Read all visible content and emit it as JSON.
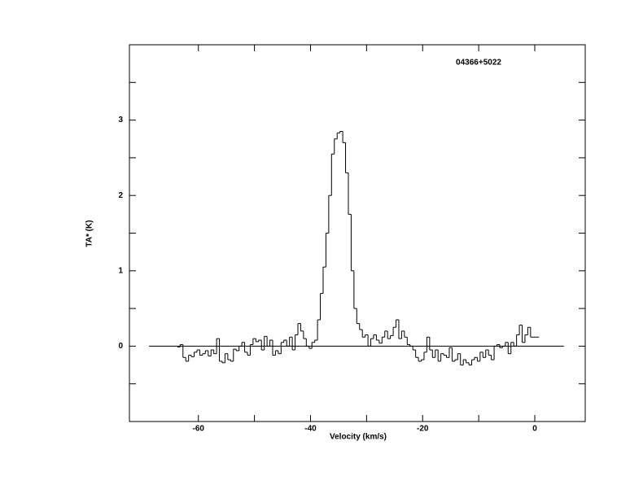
{
  "chart_data": {
    "type": "step",
    "title": "04366+5022",
    "xlabel": "Velocity (km/s)",
    "ylabel": "TA* (K)",
    "xlim": [
      -72.3,
      9
    ],
    "ylim": [
      -1,
      4
    ],
    "xticks": [
      -60,
      -40,
      -20,
      0
    ],
    "xminor_ticks": [
      -50,
      -30,
      -10
    ],
    "yticks": [
      0,
      1,
      2,
      3
    ],
    "yminor_ticks": [
      -0.5,
      0.5,
      1.5,
      2.5,
      3.5
    ],
    "baseline": {
      "value": 0,
      "xrange": [
        -68.8,
        5.2
      ]
    },
    "color": "#000000",
    "x": [
      -63.5,
      -63,
      -62.5,
      -62,
      -61.5,
      -61,
      -60.5,
      -60,
      -59.5,
      -59,
      -58.5,
      -58,
      -57.5,
      -57,
      -56.5,
      -56,
      -55.5,
      -55,
      -54.5,
      -54,
      -53.5,
      -53,
      -52.5,
      -52,
      -51.5,
      -51,
      -50.5,
      -50,
      -49.5,
      -49,
      -48.5,
      -48,
      -47.5,
      -47,
      -46.5,
      -46,
      -45.5,
      -45,
      -44.5,
      -44,
      -43.5,
      -43,
      -42.5,
      -42,
      -41.5,
      -41,
      -40.5,
      -40,
      -39.5,
      -39,
      -38.5,
      -38,
      -37.5,
      -37,
      -36.5,
      -36,
      -35.5,
      -35,
      -34.5,
      -34,
      -33.5,
      -33,
      -32.5,
      -32,
      -31.5,
      -31,
      -30.5,
      -30,
      -29.5,
      -29,
      -28.5,
      -28,
      -27.5,
      -27,
      -26.5,
      -26,
      -25.5,
      -25,
      -24.5,
      -24,
      -23.5,
      -23,
      -22.5,
      -22,
      -21.5,
      -21,
      -20.5,
      -20,
      -19.5,
      -19,
      -18.5,
      -18,
      -17.5,
      -17,
      -16.5,
      -16,
      -15.5,
      -15,
      -14.5,
      -14,
      -13.5,
      -13,
      -12.5,
      -12,
      -11.5,
      -11,
      -10.5,
      -10,
      -9.5,
      -9,
      -8.5,
      -8,
      -7.5,
      -7,
      -6.5,
      -6,
      -5.5,
      -5,
      -4.5,
      -4,
      -3.5,
      -3,
      -2.5,
      -2,
      -1.5,
      -1,
      -0.5,
      0,
      0.5
    ],
    "values": [
      -0.01,
      0.02,
      -0.15,
      -0.2,
      -0.12,
      -0.14,
      -0.08,
      -0.05,
      -0.12,
      -0.1,
      -0.06,
      -0.13,
      -0.05,
      -0.1,
      0.1,
      -0.2,
      -0.22,
      -0.1,
      -0.18,
      -0.2,
      -0.04,
      -0.06,
      0.0,
      0.05,
      -0.08,
      -0.12,
      0.02,
      0.1,
      0.06,
      0.08,
      -0.05,
      0.13,
      0.0,
      0.08,
      -0.12,
      -0.06,
      -0.1,
      0.05,
      0.08,
      0.0,
      0.12,
      -0.05,
      0.15,
      0.3,
      0.2,
      0.1,
      0.0,
      -0.03,
      0.05,
      0.08,
      0.35,
      0.7,
      1.05,
      1.5,
      2.0,
      2.55,
      2.75,
      2.83,
      2.85,
      2.7,
      2.3,
      1.75,
      1.0,
      0.5,
      0.3,
      0.22,
      0.12,
      0.15,
      0.0,
      0.1,
      0.15,
      0.08,
      0.04,
      0.12,
      0.2,
      0.1,
      0.14,
      0.25,
      0.35,
      0.1,
      0.2,
      0.12,
      0.02,
      0.0,
      -0.05,
      -0.15,
      -0.2,
      -0.18,
      -0.08,
      0.12,
      -0.05,
      -0.15,
      -0.05,
      -0.2,
      -0.1,
      -0.12,
      -0.15,
      -0.02,
      -0.2,
      -0.18,
      -0.1,
      -0.25,
      -0.18,
      -0.22,
      -0.25,
      -0.18,
      -0.15,
      -0.2,
      -0.08,
      -0.15,
      -0.05,
      -0.12,
      -0.18,
      0.0,
      0.02,
      -0.02,
      0.0,
      0.05,
      -0.1,
      0.05,
      0.0,
      0.15,
      0.28,
      0.05,
      0.15,
      0.25,
      0.12,
      0.12,
      0.12
    ]
  }
}
